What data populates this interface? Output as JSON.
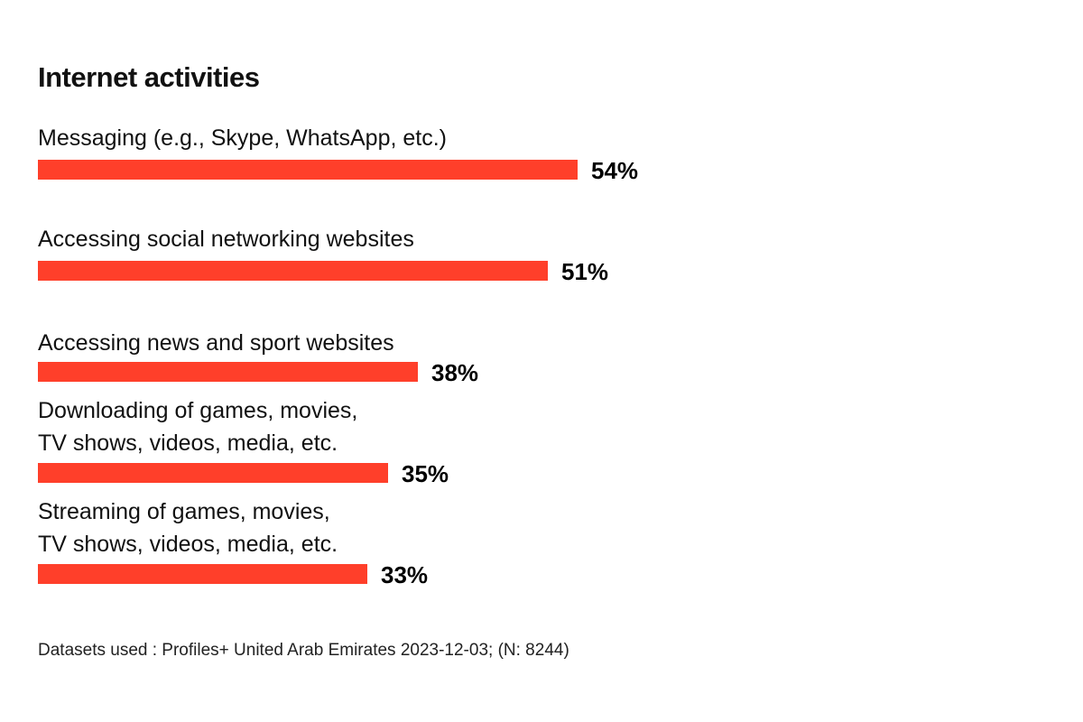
{
  "chart_data": {
    "type": "bar",
    "orientation": "horizontal",
    "title": "Internet activities",
    "unit": "%",
    "categories": [
      "Messaging (e.g., Skype, WhatsApp, etc.)",
      "Accessing social networking websites",
      "Accessing news and sport websites",
      "Downloading of games, movies,\nTV shows, videos, media, etc.",
      "Streaming of games, movies,\nTV shows, videos, media, etc."
    ],
    "values": [
      54,
      51,
      38,
      35,
      33
    ],
    "value_labels": [
      "54%",
      "51%",
      "38%",
      "35%",
      "33%"
    ],
    "xlim": [
      0,
      100
    ],
    "grid": false,
    "legend": "none",
    "bar_color": "#ff3f2a"
  },
  "footer": {
    "note": "Datasets used : Profiles+ United Arab Emirates 2023-12-03; (N: 8244)"
  }
}
